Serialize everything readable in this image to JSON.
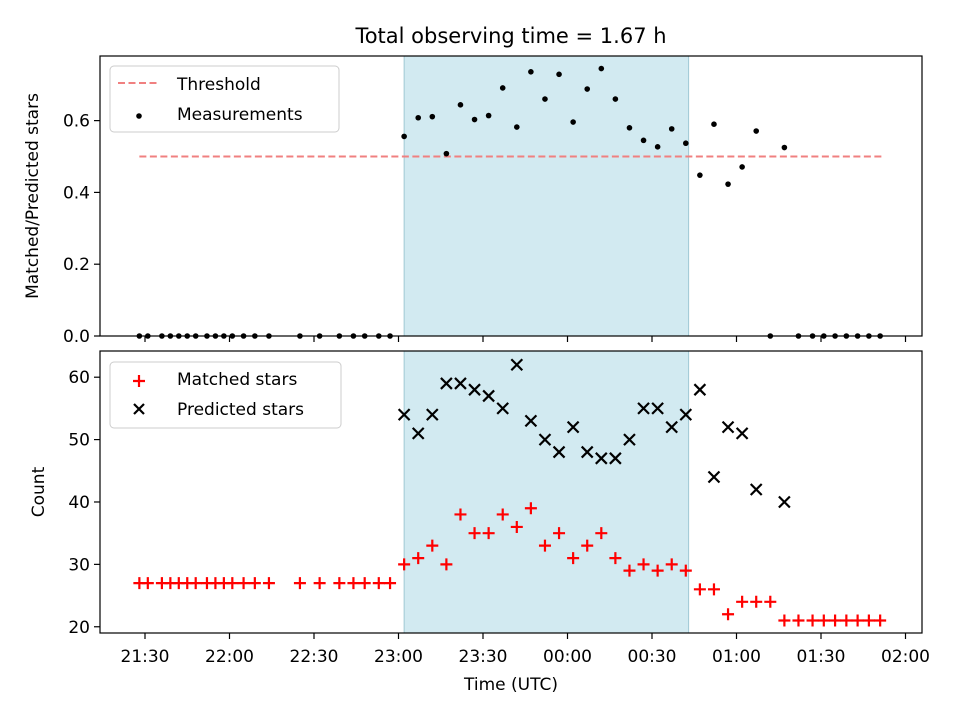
{
  "chart_data": {
    "title": "Total observing time = 1.67 h",
    "x_axis": {
      "label": "Time (UTC)",
      "tick_labels": [
        "21:30",
        "22:00",
        "22:30",
        "23:00",
        "23:30",
        "00:00",
        "00:30",
        "01:00",
        "01:30",
        "02:00"
      ]
    },
    "observing_window": {
      "start": "23:02",
      "end": "00:43",
      "color": "#add8e6"
    },
    "panels": [
      {
        "type": "scatter",
        "ylabel": "Matched/Predicted stars",
        "ylim": [
          0,
          0.78
        ],
        "yticks": [
          "0.0",
          "0.2",
          "0.4",
          "0.6"
        ],
        "legend_position": "upper left",
        "threshold": {
          "name": "Threshold",
          "value": 0.5,
          "x_start": "21:28",
          "x_end": "01:52",
          "color": "#f08080"
        },
        "series": [
          {
            "name": "Measurements",
            "marker": "dot",
            "color": "#000000",
            "points": [
              [
                "21:28",
                0.0
              ],
              [
                "21:31",
                0.0
              ],
              [
                "21:36",
                0.0
              ],
              [
                "21:39",
                0.0
              ],
              [
                "21:42",
                0.0
              ],
              [
                "21:45",
                0.0
              ],
              [
                "21:48",
                0.0
              ],
              [
                "21:52",
                0.0
              ],
              [
                "21:55",
                0.0
              ],
              [
                "21:58",
                0.0
              ],
              [
                "22:01",
                0.0
              ],
              [
                "22:05",
                0.0
              ],
              [
                "22:09",
                0.0
              ],
              [
                "22:14",
                0.0
              ],
              [
                "22:25",
                0.0
              ],
              [
                "22:32",
                0.0
              ],
              [
                "22:39",
                0.0
              ],
              [
                "22:44",
                0.0
              ],
              [
                "22:48",
                0.0
              ],
              [
                "22:53",
                0.0
              ],
              [
                "22:57",
                0.0
              ],
              [
                "23:02",
                0.556
              ],
              [
                "23:07",
                0.608
              ],
              [
                "23:12",
                0.611
              ],
              [
                "23:17",
                0.508
              ],
              [
                "23:22",
                0.644
              ],
              [
                "23:27",
                0.603
              ],
              [
                "23:32",
                0.614
              ],
              [
                "23:37",
                0.691
              ],
              [
                "23:42",
                0.582
              ],
              [
                "23:47",
                0.736
              ],
              [
                "23:52",
                0.66
              ],
              [
                "23:57",
                0.729
              ],
              [
                "00:02",
                0.596
              ],
              [
                "00:07",
                0.688
              ],
              [
                "00:12",
                0.745
              ],
              [
                "00:17",
                0.66
              ],
              [
                "00:22",
                0.58
              ],
              [
                "00:27",
                0.545
              ],
              [
                "00:32",
                0.527
              ],
              [
                "00:37",
                0.577
              ],
              [
                "00:42",
                0.537
              ],
              [
                "00:47",
                0.448
              ],
              [
                "00:52",
                0.59
              ],
              [
                "00:57",
                0.423
              ],
              [
                "01:02",
                0.471
              ],
              [
                "01:07",
                0.571
              ],
              [
                "01:12",
                0.0
              ],
              [
                "01:17",
                0.525
              ],
              [
                "01:22",
                0.0
              ],
              [
                "01:27",
                0.0
              ],
              [
                "01:31",
                0.0
              ],
              [
                "01:35",
                0.0
              ],
              [
                "01:39",
                0.0
              ],
              [
                "01:43",
                0.0
              ],
              [
                "01:47",
                0.0
              ],
              [
                "01:51",
                0.0
              ]
            ]
          }
        ]
      },
      {
        "type": "scatter",
        "ylabel": "Count",
        "ylim": [
          19,
          64.2
        ],
        "yticks": [
          "20",
          "30",
          "40",
          "50",
          "60"
        ],
        "legend_position": "upper left",
        "series": [
          {
            "name": "Matched stars",
            "marker": "plus",
            "color": "#ff0000",
            "points": [
              [
                "21:28",
                27
              ],
              [
                "21:31",
                27
              ],
              [
                "21:36",
                27
              ],
              [
                "21:39",
                27
              ],
              [
                "21:42",
                27
              ],
              [
                "21:45",
                27
              ],
              [
                "21:48",
                27
              ],
              [
                "21:52",
                27
              ],
              [
                "21:55",
                27
              ],
              [
                "21:58",
                27
              ],
              [
                "22:01",
                27
              ],
              [
                "22:05",
                27
              ],
              [
                "22:09",
                27
              ],
              [
                "22:14",
                27
              ],
              [
                "22:25",
                27
              ],
              [
                "22:32",
                27
              ],
              [
                "22:39",
                27
              ],
              [
                "22:44",
                27
              ],
              [
                "22:48",
                27
              ],
              [
                "22:53",
                27
              ],
              [
                "22:57",
                27
              ],
              [
                "23:02",
                30
              ],
              [
                "23:07",
                31
              ],
              [
                "23:12",
                33
              ],
              [
                "23:17",
                30
              ],
              [
                "23:22",
                38
              ],
              [
                "23:27",
                35
              ],
              [
                "23:32",
                35
              ],
              [
                "23:37",
                38
              ],
              [
                "23:42",
                36
              ],
              [
                "23:47",
                39
              ],
              [
                "23:52",
                33
              ],
              [
                "23:57",
                35
              ],
              [
                "00:02",
                31
              ],
              [
                "00:07",
                33
              ],
              [
                "00:12",
                35
              ],
              [
                "00:17",
                31
              ],
              [
                "00:22",
                29
              ],
              [
                "00:27",
                30
              ],
              [
                "00:32",
                29
              ],
              [
                "00:37",
                30
              ],
              [
                "00:42",
                29
              ],
              [
                "00:47",
                26
              ],
              [
                "00:52",
                26
              ],
              [
                "00:57",
                22
              ],
              [
                "01:02",
                24
              ],
              [
                "01:07",
                24
              ],
              [
                "01:12",
                24
              ],
              [
                "01:17",
                21
              ],
              [
                "01:22",
                21
              ],
              [
                "01:27",
                21
              ],
              [
                "01:31",
                21
              ],
              [
                "01:35",
                21
              ],
              [
                "01:39",
                21
              ],
              [
                "01:43",
                21
              ],
              [
                "01:47",
                21
              ],
              [
                "01:51",
                21
              ]
            ]
          },
          {
            "name": "Predicted stars",
            "marker": "x",
            "color": "#000000",
            "points": [
              [
                "23:02",
                54
              ],
              [
                "23:07",
                51
              ],
              [
                "23:12",
                54
              ],
              [
                "23:17",
                59
              ],
              [
                "23:22",
                59
              ],
              [
                "23:27",
                58
              ],
              [
                "23:32",
                57
              ],
              [
                "23:37",
                55
              ],
              [
                "23:42",
                62
              ],
              [
                "23:47",
                53
              ],
              [
                "23:52",
                50
              ],
              [
                "23:57",
                48
              ],
              [
                "00:02",
                52
              ],
              [
                "00:07",
                48
              ],
              [
                "00:12",
                47
              ],
              [
                "00:17",
                47
              ],
              [
                "00:22",
                50
              ],
              [
                "00:27",
                55
              ],
              [
                "00:32",
                55
              ],
              [
                "00:37",
                52
              ],
              [
                "00:42",
                54
              ],
              [
                "00:47",
                58
              ],
              [
                "00:52",
                44
              ],
              [
                "00:57",
                52
              ],
              [
                "01:02",
                51
              ],
              [
                "01:07",
                42
              ],
              [
                "01:17",
                40
              ]
            ]
          }
        ]
      }
    ]
  }
}
